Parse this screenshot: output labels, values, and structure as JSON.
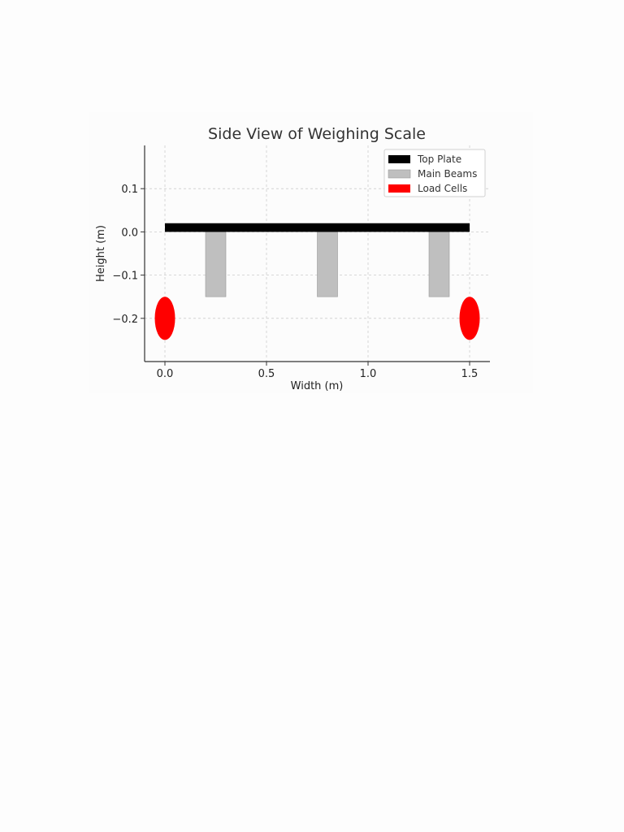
{
  "chart_data": {
    "type": "diagram",
    "title": "Side View of Weighing Scale",
    "xlabel": "Width (m)",
    "ylabel": "Height (m)",
    "xlim": [
      -0.1,
      1.6
    ],
    "ylim": [
      -0.3,
      0.2
    ],
    "xticks": [
      0.0,
      0.5,
      1.0,
      1.5
    ],
    "xtick_labels": [
      "0.0",
      "0.5",
      "1.0",
      "1.5"
    ],
    "yticks": [
      0.1,
      0.0,
      -0.1,
      -0.2
    ],
    "ytick_labels": [
      "0.1",
      "0.0",
      "−0.1",
      "−0.2"
    ],
    "grid": true,
    "legend_position": "top-right",
    "top_plate": {
      "x": [
        0.0,
        1.5
      ],
      "y": [
        0.0,
        0.02
      ],
      "color": "#000000"
    },
    "main_beams": [
      {
        "x": [
          0.2,
          0.3
        ],
        "y": [
          -0.15,
          0.0
        ]
      },
      {
        "x": [
          0.75,
          0.85
        ],
        "y": [
          -0.15,
          0.0
        ]
      },
      {
        "x": [
          1.3,
          1.4
        ],
        "y": [
          -0.15,
          0.0
        ]
      }
    ],
    "main_beam_color": "#bfbfbf",
    "load_cells": [
      {
        "x": 0.0,
        "y": -0.2,
        "width": 0.1,
        "height": 0.1
      },
      {
        "x": 1.5,
        "y": -0.2,
        "width": 0.1,
        "height": 0.1
      }
    ],
    "load_cell_color": "#ff0000",
    "legend": [
      {
        "label": "Top Plate",
        "color": "#000000"
      },
      {
        "label": "Main Beams",
        "color": "#bfbfbf"
      },
      {
        "label": "Load Cells",
        "color": "#ff0000"
      }
    ]
  }
}
